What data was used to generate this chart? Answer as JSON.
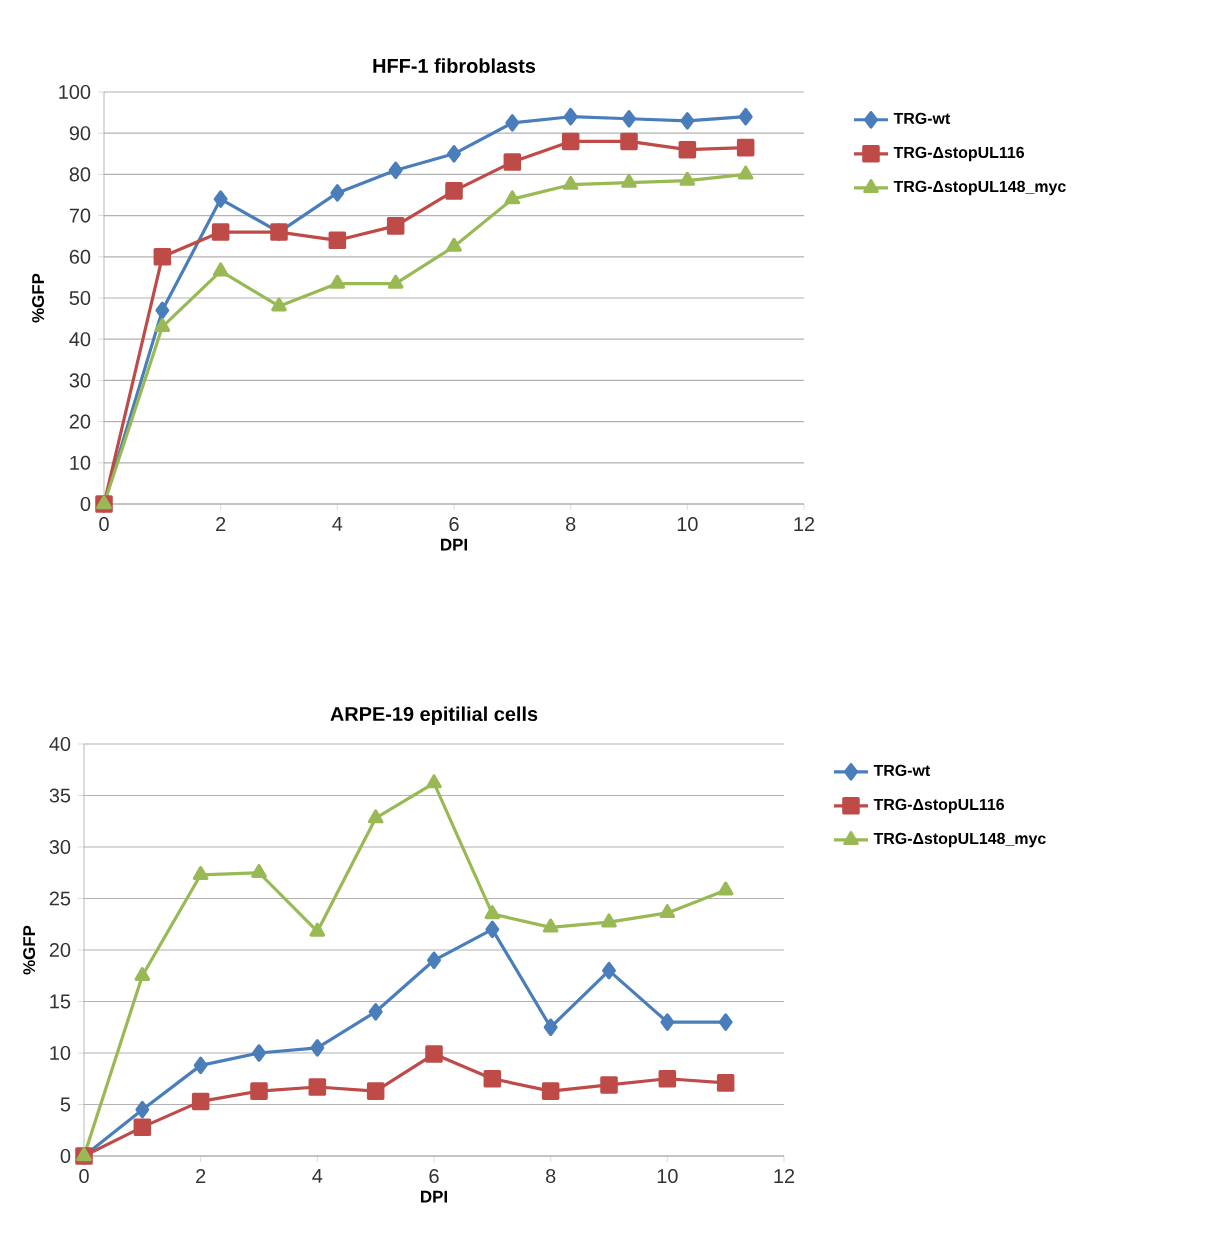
{
  "chart_data": [
    {
      "type": "line",
      "title": "HFF-1 fibroblasts",
      "xlabel": "DPI",
      "ylabel": "%GFP",
      "x": [
        0,
        1,
        2,
        3,
        4,
        5,
        6,
        7,
        8,
        9,
        10,
        11
      ],
      "series": [
        {
          "name": "TRG-wt",
          "color": "#4a7ebb",
          "marker": "diamond",
          "values": [
            0,
            47,
            74,
            66,
            75.5,
            81,
            85,
            92.5,
            94,
            93.5,
            93,
            94
          ]
        },
        {
          "name": "TRG-ΔstopUL116",
          "color": "#be4b48",
          "marker": "square",
          "values": [
            0,
            60,
            66,
            66,
            64,
            67.5,
            76,
            83,
            88,
            88,
            86,
            86.5
          ]
        },
        {
          "name": "TRG-ΔstopUL148_myc",
          "color": "#98b954",
          "marker": "triangle",
          "values": [
            0,
            43,
            56.5,
            48,
            53.5,
            53.5,
            62.5,
            74,
            77.5,
            78,
            78.5,
            80
          ]
        }
      ],
      "xlim": [
        0,
        12
      ],
      "xticks": [
        0,
        2,
        4,
        6,
        8,
        10,
        12
      ],
      "ylim": [
        0,
        100
      ],
      "yticks": [
        0,
        10,
        20,
        30,
        40,
        50,
        60,
        70,
        80,
        90,
        100
      ],
      "grid": "y",
      "legend": "right"
    },
    {
      "type": "line",
      "title": "ARPE-19 epitilial cells",
      "xlabel": "DPI",
      "ylabel": "%GFP",
      "x": [
        0,
        1,
        2,
        3,
        4,
        5,
        6,
        7,
        8,
        9,
        10,
        11
      ],
      "series": [
        {
          "name": "TRG-wt",
          "color": "#4a7ebb",
          "marker": "diamond",
          "values": [
            0,
            4.5,
            8.8,
            10,
            10.5,
            14,
            19,
            22,
            12.5,
            18,
            13,
            13
          ]
        },
        {
          "name": "TRG-ΔstopUL116",
          "color": "#be4b48",
          "marker": "square",
          "values": [
            0,
            2.8,
            5.3,
            6.3,
            6.7,
            6.3,
            9.9,
            7.5,
            6.3,
            6.9,
            7.5,
            7.1
          ]
        },
        {
          "name": "TRG-ΔstopUL148_myc",
          "color": "#98b954",
          "marker": "triangle",
          "values": [
            0,
            17.5,
            27.3,
            27.5,
            21.8,
            32.8,
            36.2,
            23.5,
            22.2,
            22.7,
            23.6,
            25.8
          ]
        }
      ],
      "xlim": [
        0,
        12
      ],
      "xticks": [
        0,
        2,
        4,
        6,
        8,
        10,
        12
      ],
      "ylim": [
        0,
        40
      ],
      "yticks": [
        0,
        5,
        10,
        15,
        20,
        25,
        30,
        35,
        40
      ],
      "grid": "y",
      "legend": "right"
    }
  ]
}
